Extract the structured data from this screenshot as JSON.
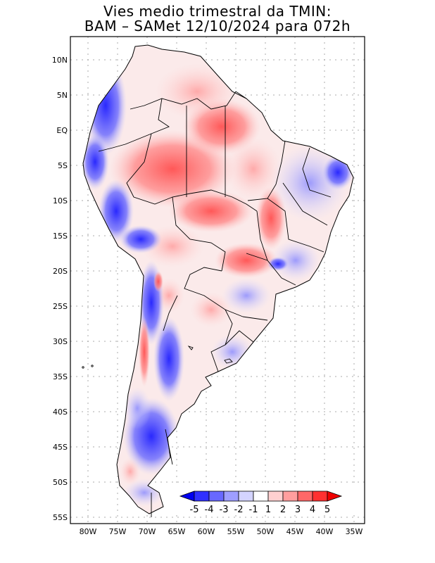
{
  "title": {
    "line1": "Vies medio trimestral da TMIN:",
    "line2": "BAM – SAMet 12/10/2024  para 072h"
  },
  "map": {
    "lat_labels": [
      "10N",
      "5N",
      "EQ",
      "5S",
      "10S",
      "15S",
      "20S",
      "25S",
      "30S",
      "35S",
      "40S",
      "45S",
      "50S",
      "55S"
    ],
    "lon_labels": [
      "80W",
      "75W",
      "70W",
      "65W",
      "60W",
      "55W",
      "50W",
      "45W",
      "40W",
      "35W"
    ],
    "region": "South America",
    "colorbar": {
      "labels": [
        "-5",
        "-4",
        "-3",
        "-2",
        "-1",
        "1",
        "2",
        "3",
        "4",
        "5"
      ],
      "colors": [
        "#0000f0",
        "#3030ff",
        "#6868ff",
        "#9e9eff",
        "#d4d4ff",
        "#ffffff",
        "#ffd0d0",
        "#ff9e9e",
        "#ff6868",
        "#ff3030",
        "#f00000"
      ]
    }
  }
}
